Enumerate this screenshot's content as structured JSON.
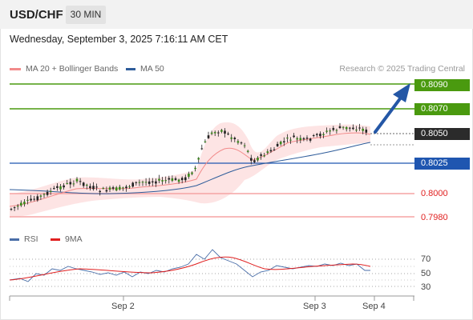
{
  "header": {
    "symbol": "USD/CHF",
    "timeframe": "30 MIN"
  },
  "datetime": "Wednesday, September 3, 2025 7:16:11 AM CET",
  "legend": {
    "ma20": {
      "label": "MA 20 + Bollinger Bands",
      "color": "#f28b8b"
    },
    "ma50": {
      "label": "MA 50",
      "color": "#2e5c9a"
    },
    "credit": "Research © 2025 Trading Central"
  },
  "levels": [
    {
      "value": "0.8090",
      "kind": "resistance"
    },
    {
      "value": "0.8070",
      "kind": "resistance"
    },
    {
      "value": "0.8050",
      "kind": "current"
    },
    {
      "value": "0.8025",
      "kind": "pivot"
    },
    {
      "value": "0.8000",
      "kind": "support"
    },
    {
      "value": "0.7980",
      "kind": "support"
    }
  ],
  "rsi": {
    "label": "RSI",
    "ma_label": "9MA",
    "rsi_color": "#4a6ea8",
    "ma_color": "#e02020",
    "ticks": [
      "70",
      "50",
      "30"
    ]
  },
  "x_axis": {
    "ticks": [
      "Sep 2",
      "Sep 3",
      "Sep 4"
    ]
  },
  "colors": {
    "green": "#4a9a0f",
    "blue": "#1f56b0",
    "pink": "#f5a3a3",
    "dark": "#2b2b2b",
    "arrow": "#2457a6"
  }
}
